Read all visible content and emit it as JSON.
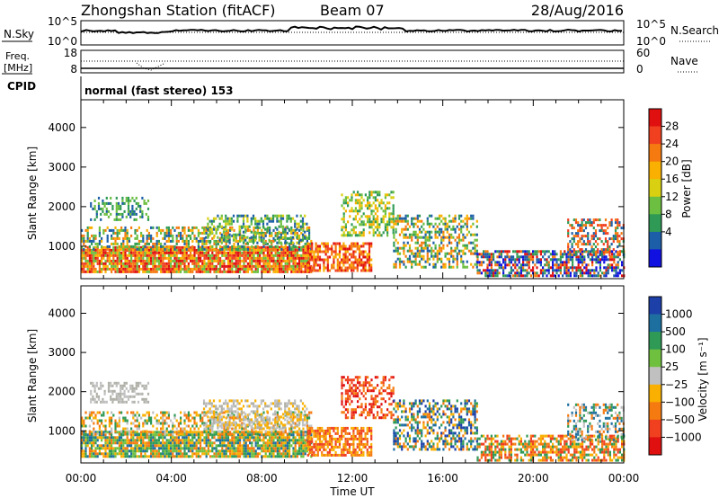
{
  "header": {
    "station": "Zhongshan Station (fitACF)",
    "beam": "Beam 07",
    "date": "28/Aug/2016"
  },
  "top_panels": {
    "nsky_label": "N.Sky",
    "nsky_left_ticks": [
      "10^5",
      "10^0"
    ],
    "nsearch_label": "N.Search",
    "nsearch_right_ticks": [
      "10^5",
      "10^0"
    ],
    "freq_label_1": "Freq.",
    "freq_label_2": "[MHz]",
    "freq_left_ticks": [
      "18",
      "8"
    ],
    "nave_label": "Nave",
    "nave_right_ticks": [
      "60",
      "0"
    ],
    "cpid_label": "CPID",
    "cpid_text": "normal (fast stereo) 153"
  },
  "chart_data": [
    {
      "type": "heatmap",
      "panel": "power",
      "ylabel": "Slant Range [km]",
      "yticks": [
        1000,
        2000,
        3000,
        4000
      ],
      "ylim": [
        180,
        4700
      ],
      "xticks": [
        "00:00",
        "04:00",
        "08:00",
        "12:00",
        "16:00",
        "20:00",
        "00:00"
      ],
      "xlim_hours": [
        0,
        24
      ],
      "colorbar": {
        "label": "Power [dB]",
        "ticks": [
          "28",
          "24",
          "20",
          "16",
          "12",
          "8",
          "4"
        ],
        "colors": [
          "#e01010",
          "#f04020",
          "#f57a10",
          "#f9b000",
          "#d8d010",
          "#6cbf40",
          "#2f9a55",
          "#1d5ea8",
          "#1010e0"
        ]
      },
      "regions": [
        {
          "t0": 0.0,
          "t1": 10.2,
          "r0": 350,
          "r1": 1000,
          "palette": [
            "#e01010",
            "#f04020",
            "#f57a10",
            "#f9b000",
            "#6cbf40"
          ],
          "density": 0.9
        },
        {
          "t0": 0.0,
          "t1": 10.2,
          "r0": 900,
          "r1": 1500,
          "palette": [
            "#f57a10",
            "#f9b000",
            "#6cbf40",
            "#2f9a55",
            "#1d5ea8"
          ],
          "density": 0.5
        },
        {
          "t0": 0.4,
          "t1": 3.0,
          "r0": 1700,
          "r1": 2250,
          "palette": [
            "#1d5ea8",
            "#2f9a55",
            "#6cbf40"
          ],
          "density": 0.35
        },
        {
          "t0": 5.4,
          "t1": 10.0,
          "r0": 1100,
          "r1": 1800,
          "palette": [
            "#1d5ea8",
            "#2f9a55",
            "#6cbf40",
            "#d8d010"
          ],
          "density": 0.45
        },
        {
          "t0": 10.0,
          "t1": 12.8,
          "r0": 380,
          "r1": 1100,
          "palette": [
            "#e01010",
            "#f04020",
            "#f57a10",
            "#f9b000"
          ],
          "density": 0.7
        },
        {
          "t0": 11.5,
          "t1": 13.8,
          "r0": 1300,
          "r1": 2400,
          "palette": [
            "#6cbf40",
            "#2f9a55",
            "#f9b000",
            "#d8d010"
          ],
          "density": 0.5
        },
        {
          "t0": 13.8,
          "t1": 17.5,
          "r0": 500,
          "r1": 1800,
          "palette": [
            "#6cbf40",
            "#2f9a55",
            "#f9b000",
            "#f57a10",
            "#1d5ea8"
          ],
          "density": 0.5
        },
        {
          "t0": 17.5,
          "t1": 24.0,
          "r0": 250,
          "r1": 900,
          "palette": [
            "#1d5ea8",
            "#2f9a55",
            "#f57a10",
            "#e01010",
            "#1010e0"
          ],
          "density": 0.65
        },
        {
          "t0": 21.5,
          "t1": 24.0,
          "r0": 800,
          "r1": 1700,
          "palette": [
            "#f04020",
            "#f57a10",
            "#2f9a55",
            "#1d5ea8"
          ],
          "density": 0.5
        }
      ]
    },
    {
      "type": "heatmap",
      "panel": "velocity",
      "ylabel": "Slant Range [km]",
      "yticks": [
        1000,
        2000,
        3000,
        4000
      ],
      "ylim": [
        180,
        4700
      ],
      "xticks": [
        "00:00",
        "04:00",
        "08:00",
        "12:00",
        "16:00",
        "20:00",
        "00:00"
      ],
      "xlim_hours": [
        0,
        24
      ],
      "xlabel": "Time UT",
      "colorbar": {
        "label": "Velocity [m s⁻¹]",
        "ticks": [
          "1000",
          "500",
          "100",
          "25",
          "−25",
          "−100",
          "−500",
          "−1000"
        ],
        "colors": [
          "#1c3fa8",
          "#1d6fa0",
          "#2f9a55",
          "#70c040",
          "#c0c0c0",
          "#f9b000",
          "#f57a10",
          "#f04020",
          "#e01010"
        ]
      },
      "regions": [
        {
          "t0": 0.0,
          "t1": 10.2,
          "r0": 350,
          "r1": 1000,
          "palette": [
            "#f57a10",
            "#f9b000",
            "#2f9a55",
            "#1d6fa0",
            "#70c040"
          ],
          "density": 0.85
        },
        {
          "t0": 0.0,
          "t1": 10.2,
          "r0": 900,
          "r1": 1500,
          "palette": [
            "#f9b000",
            "#c0c0c0",
            "#2f9a55",
            "#f57a10"
          ],
          "density": 0.45
        },
        {
          "t0": 0.4,
          "t1": 3.0,
          "r0": 1700,
          "r1": 2250,
          "palette": [
            "#c0c0c0",
            "#b0b0a8"
          ],
          "density": 0.5
        },
        {
          "t0": 5.4,
          "t1": 10.0,
          "r0": 1100,
          "r1": 1800,
          "palette": [
            "#c0c0c0",
            "#f9b000",
            "#b0b0a8"
          ],
          "density": 0.5
        },
        {
          "t0": 10.0,
          "t1": 12.8,
          "r0": 380,
          "r1": 1100,
          "palette": [
            "#f57a10",
            "#f04020",
            "#f9b000"
          ],
          "density": 0.7
        },
        {
          "t0": 11.5,
          "t1": 13.8,
          "r0": 1300,
          "r1": 2400,
          "palette": [
            "#f04020",
            "#f57a10",
            "#e01010"
          ],
          "density": 0.5
        },
        {
          "t0": 13.8,
          "t1": 17.5,
          "r0": 500,
          "r1": 1800,
          "palette": [
            "#1c3fa8",
            "#1d6fa0",
            "#2f9a55",
            "#f9b000",
            "#f57a10"
          ],
          "density": 0.5
        },
        {
          "t0": 17.5,
          "t1": 24.0,
          "r0": 250,
          "r1": 900,
          "palette": [
            "#f57a10",
            "#f9b000",
            "#2f9a55",
            "#f04020"
          ],
          "density": 0.6
        },
        {
          "t0": 21.5,
          "t1": 24.0,
          "r0": 800,
          "r1": 1700,
          "palette": [
            "#c0c0c0",
            "#2f9a55",
            "#1d6fa0",
            "#f57a10"
          ],
          "density": 0.45
        }
      ]
    }
  ]
}
